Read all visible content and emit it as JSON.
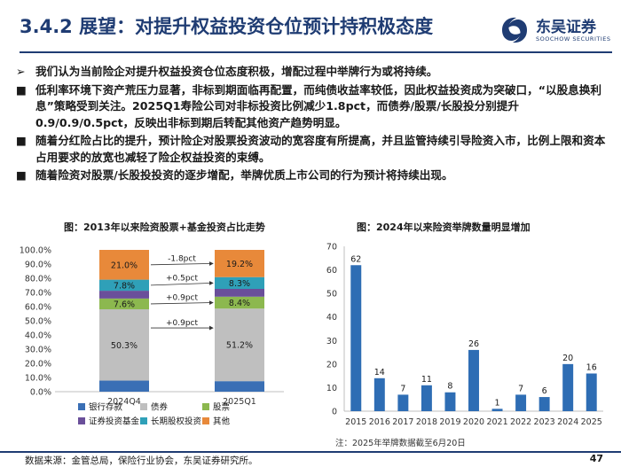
{
  "header": {
    "title": "3.4.2 展望：对提升权益投资仓位预计持积极态度",
    "logo_cn": "东吴证券",
    "logo_en": "SOOCHOW SECURITIES"
  },
  "bullets": [
    {
      "mark": "➢",
      "text": "我们认为当前险企对提升权益投资仓位态度积极，增配过程中举牌行为或将持续。"
    },
    {
      "mark": "■",
      "text": "低利率环境下资产荒压力显著，非标到期面临再配置，而纯债收益率较低，因此权益投资成为突破口，“以股息换利息”策略受到关注。2025Q1寿险公司对非标投资比例减少1.8pct，而债券/股票/长股投分别提升0.9/0.9/0.5pct，反映出非标到期后转配其他资产趋势明显。"
    },
    {
      "mark": "■",
      "text": "随着分红险占比的提升，预计险企对股票投资波动的宽容度有所提高，并且监管持续引导险资入市，比例上限和资本占用要求的放宽也减轻了险企权益投资的束缚。"
    },
    {
      "mark": "■",
      "text": "随着险资对股票/长股投投资的逐步增配，举牌优质上市公司的行为预计将持续出现。"
    }
  ],
  "chart_data": [
    {
      "type": "bar",
      "stacked": true,
      "title": "图：2013年以来险资股票+基金投资占比走势",
      "categories": [
        "2024Q4",
        "2025Q1"
      ],
      "ylim": [
        0,
        100
      ],
      "yticks": [
        "0.0%",
        "10.0%",
        "20.0%",
        "30.0%",
        "40.0%",
        "50.0%",
        "60.0%",
        "70.0%",
        "80.0%",
        "90.0%",
        "100.0%"
      ],
      "series": [
        {
          "name": "银行存款",
          "color": "#3a6fb5",
          "values": [
            7.8,
            7.4
          ],
          "labels": [
            "",
            ""
          ]
        },
        {
          "name": "债券",
          "color": "#bfbfbf",
          "values": [
            50.3,
            51.2
          ],
          "labels": [
            "50.3%",
            "51.2%"
          ]
        },
        {
          "name": "股票",
          "color": "#8cb84f",
          "values": [
            7.6,
            8.4
          ],
          "labels": [
            "7.6%",
            "8.4%"
          ]
        },
        {
          "name": "证券投资基金",
          "color": "#6a4f9a",
          "values": [
            5.5,
            5.5
          ],
          "labels": [
            "",
            ""
          ]
        },
        {
          "name": "长期股权投资",
          "color": "#2fa0b8",
          "values": [
            7.8,
            8.3
          ],
          "labels": [
            "7.8%",
            "8.3%"
          ]
        },
        {
          "name": "其他",
          "color": "#e8893a",
          "values": [
            21.0,
            19.2
          ],
          "labels": [
            "21.0%",
            "19.2%"
          ]
        }
      ],
      "annotations": [
        "-1.8pct",
        "+0.5pct",
        "+0.9pct",
        "+0.9pct"
      ]
    },
    {
      "type": "bar",
      "title": "图：2024年以来险资举牌数量明显增加",
      "categories": [
        "2015",
        "2016",
        "2017",
        "2018",
        "2019",
        "2020",
        "2021",
        "2022",
        "2023",
        "2024",
        "2025"
      ],
      "values": [
        62,
        14,
        7,
        11,
        8,
        26,
        1,
        7,
        6,
        20,
        16
      ],
      "ylim": [
        0,
        70
      ],
      "yticks": [
        "0",
        "10",
        "20",
        "30",
        "40",
        "50",
        "60",
        "70"
      ],
      "color": "#2e6db4",
      "note": "注：2025年举牌数据截至6月20日"
    }
  ],
  "footer": {
    "source": "数据来源：金管总局，保险行业协会，东吴证券研究所。",
    "page": "47"
  }
}
